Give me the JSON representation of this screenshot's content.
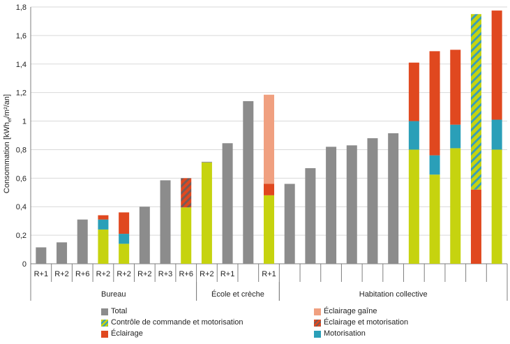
{
  "chart_data": {
    "type": "bar",
    "stacked": true,
    "ylabel": "Consommation [kWh",
    "ylabel_sub": "ef",
    "ylabel_tail": "/m²/an]",
    "ylim": [
      0,
      1.8
    ],
    "ytick_step": 0.2,
    "yticks": [
      "0",
      "0,2",
      "0,4",
      "0,6",
      "0,8",
      "1",
      "1,2",
      "1,4",
      "1,6",
      "1,8"
    ],
    "grid": true,
    "colors": {
      "total": "#8c8c8c",
      "ctrl_green": "#c6d30f",
      "ctrl_blue": "#3a9fb5",
      "eclairage_gaine": "#f0a080",
      "eclairage_motorisation": "#a0553a",
      "eclairage": "#e0481f",
      "motorisation": "#2a9fb8",
      "ctrl_solid": "#c6d30f"
    },
    "bars": [
      {
        "label": "R+1",
        "segments": [
          {
            "s": "total",
            "v": 0.115
          }
        ]
      },
      {
        "label": "R+2",
        "segments": [
          {
            "s": "total",
            "v": 0.15
          }
        ]
      },
      {
        "label": "R+6",
        "segments": [
          {
            "s": "total",
            "v": 0.31
          }
        ]
      },
      {
        "label": "R+2",
        "segments": [
          {
            "s": "ctrl_solid",
            "v": 0.24
          },
          {
            "s": "motorisation",
            "v": 0.07
          },
          {
            "s": "eclairage",
            "v": 0.03
          }
        ]
      },
      {
        "label": "R+2",
        "segments": [
          {
            "s": "ctrl_solid",
            "v": 0.14
          },
          {
            "s": "motorisation",
            "v": 0.07
          },
          {
            "s": "eclairage",
            "v": 0.15
          }
        ]
      },
      {
        "label": "R+2",
        "segments": [
          {
            "s": "total",
            "v": 0.4
          }
        ]
      },
      {
        "label": "R+3",
        "segments": [
          {
            "s": "total",
            "v": 0.585
          }
        ]
      },
      {
        "label": "R+6",
        "segments": [
          {
            "s": "ctrl_solid",
            "v": 0.395
          },
          {
            "s": "eclairage_motorisation",
            "v": 0.205
          }
        ]
      },
      {
        "label": "R+2",
        "segments": [
          {
            "s": "ctrl_solid",
            "v": 0.71
          },
          {
            "s": "total",
            "v": 0.005
          }
        ]
      },
      {
        "label": "R+1",
        "segments": [
          {
            "s": "total",
            "v": 0.845
          }
        ]
      },
      {
        "label": "",
        "segments": [
          {
            "s": "total",
            "v": 1.14
          }
        ]
      },
      {
        "label": "R+1",
        "segments": [
          {
            "s": "ctrl_solid",
            "v": 0.48
          },
          {
            "s": "eclairage",
            "v": 0.08
          },
          {
            "s": "eclairage_gaine",
            "v": 0.625
          }
        ]
      },
      {
        "label": "",
        "segments": [
          {
            "s": "total",
            "v": 0.56
          }
        ]
      },
      {
        "label": "",
        "segments": [
          {
            "s": "total",
            "v": 0.67
          }
        ]
      },
      {
        "label": "",
        "segments": [
          {
            "s": "total",
            "v": 0.82
          }
        ]
      },
      {
        "label": "",
        "segments": [
          {
            "s": "total",
            "v": 0.83
          }
        ]
      },
      {
        "label": "",
        "segments": [
          {
            "s": "total",
            "v": 0.88
          }
        ]
      },
      {
        "label": "",
        "segments": [
          {
            "s": "total",
            "v": 0.915
          }
        ]
      },
      {
        "label": "",
        "segments": [
          {
            "s": "ctrl_solid",
            "v": 0.8
          },
          {
            "s": "motorisation",
            "v": 0.2
          },
          {
            "s": "eclairage",
            "v": 0.41
          }
        ]
      },
      {
        "label": "",
        "segments": [
          {
            "s": "ctrl_solid",
            "v": 0.625
          },
          {
            "s": "motorisation",
            "v": 0.135
          },
          {
            "s": "eclairage",
            "v": 0.73
          }
        ]
      },
      {
        "label": "",
        "segments": [
          {
            "s": "ctrl_solid",
            "v": 0.81
          },
          {
            "s": "motorisation",
            "v": 0.165
          },
          {
            "s": "eclairage",
            "v": 0.525
          }
        ]
      },
      {
        "label": "",
        "segments": [
          {
            "s": "eclairage",
            "v": 0.52
          },
          {
            "s": "controle_motorisation",
            "v": 1.23
          }
        ]
      },
      {
        "label": "",
        "segments": [
          {
            "s": "ctrl_solid",
            "v": 0.8
          },
          {
            "s": "motorisation",
            "v": 0.21
          },
          {
            "s": "eclairage",
            "v": 0.765
          }
        ]
      }
    ],
    "groups": [
      {
        "label": "Bureau",
        "start": 0,
        "end": 7
      },
      {
        "label": "École et crèche",
        "start": 8,
        "end": 11
      },
      {
        "label": "Habitation collective",
        "start": 12,
        "end": 22
      }
    ]
  },
  "legend": {
    "items": [
      {
        "key": "total",
        "label": "Total"
      },
      {
        "key": "eclairage_gaine",
        "label": "Éclairage gaîne"
      },
      {
        "key": "controle_motorisation",
        "label": "Contrôle de commande et motorisation"
      },
      {
        "key": "eclairage_motorisation",
        "label": "Éclairage et motorisation"
      },
      {
        "key": "eclairage",
        "label": "Éclairage"
      },
      {
        "key": "motorisation",
        "label": "Motorisation"
      }
    ]
  }
}
